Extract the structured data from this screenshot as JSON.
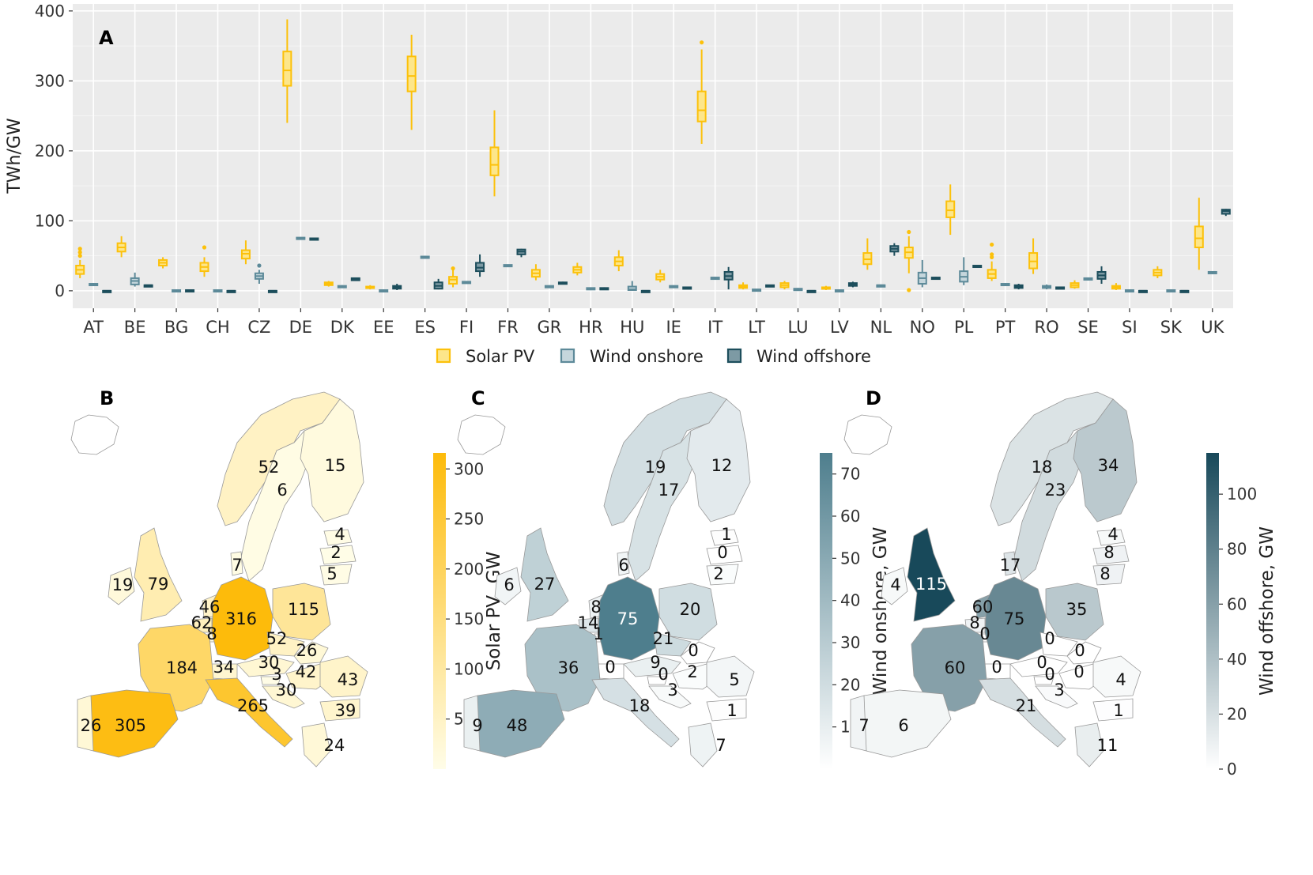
{
  "panel_labels": {
    "a": "A",
    "b": "B",
    "c": "C",
    "d": "D"
  },
  "colors": {
    "solar": "#fcc10b",
    "solar_fill": "#fde68a",
    "onshore": "#5d8a99",
    "onshore_fill": "#c5d6dc",
    "offshore": "#1d4e5c",
    "offshore_fill": "#7d9aa4",
    "plot_bg": "#ebebeb",
    "grid": "#ffffff"
  },
  "chart_data": [
    {
      "type": "box",
      "panel": "A",
      "ylabel": "TWh/GW",
      "ylim": [
        -25,
        410
      ],
      "yticks": [
        0,
        100,
        200,
        300,
        400
      ],
      "grid": true,
      "legend_position": "bottom",
      "categories": [
        "AT",
        "BE",
        "BG",
        "CH",
        "CZ",
        "DE",
        "DK",
        "EE",
        "ES",
        "FI",
        "FR",
        "GR",
        "HR",
        "HU",
        "IE",
        "IT",
        "LT",
        "LU",
        "LV",
        "NL",
        "NO",
        "PL",
        "PT",
        "RO",
        "SE",
        "SI",
        "SK",
        "UK"
      ],
      "series": [
        {
          "name": "Solar PV",
          "boxes": [
            {
              "min": 18,
              "q1": 24,
              "med": 30,
              "q3": 36,
              "max": 44,
              "outliers": [
                50,
                55,
                60
              ]
            },
            {
              "min": 48,
              "q1": 56,
              "med": 62,
              "q3": 68,
              "max": 78,
              "outliers": []
            },
            {
              "min": 32,
              "q1": 36,
              "med": 40,
              "q3": 44,
              "max": 48,
              "outliers": []
            },
            {
              "min": 20,
              "q1": 28,
              "med": 34,
              "q3": 40,
              "max": 48,
              "outliers": [
                62
              ]
            },
            {
              "min": 38,
              "q1": 46,
              "med": 53,
              "q3": 58,
              "max": 72,
              "outliers": []
            },
            {
              "min": 240,
              "q1": 293,
              "med": 315,
              "q3": 342,
              "max": 388,
              "outliers": []
            },
            {
              "min": 6,
              "q1": 8,
              "med": 10,
              "q3": 12,
              "max": 14,
              "outliers": []
            },
            {
              "min": 2,
              "q1": 4,
              "med": 5,
              "q3": 6,
              "max": 8,
              "outliers": []
            },
            {
              "min": 230,
              "q1": 285,
              "med": 307,
              "q3": 335,
              "max": 366,
              "outliers": []
            },
            {
              "min": 5,
              "q1": 10,
              "med": 16,
              "q3": 20,
              "max": 30,
              "outliers": [
                32
              ]
            },
            {
              "min": 135,
              "q1": 165,
              "med": 180,
              "q3": 205,
              "max": 258,
              "outliers": []
            },
            {
              "min": 15,
              "q1": 20,
              "med": 25,
              "q3": 30,
              "max": 38,
              "outliers": []
            },
            {
              "min": 22,
              "q1": 26,
              "med": 30,
              "q3": 34,
              "max": 40,
              "outliers": []
            },
            {
              "min": 28,
              "q1": 36,
              "med": 42,
              "q3": 48,
              "max": 58,
              "outliers": []
            },
            {
              "min": 12,
              "q1": 16,
              "med": 20,
              "q3": 24,
              "max": 30,
              "outliers": []
            },
            {
              "min": 210,
              "q1": 242,
              "med": 258,
              "q3": 285,
              "max": 345,
              "outliers": [
                355
              ]
            },
            {
              "min": 2,
              "q1": 4,
              "med": 6,
              "q3": 8,
              "max": 12,
              "outliers": []
            },
            {
              "min": 2,
              "q1": 5,
              "med": 8,
              "q3": 11,
              "max": 14,
              "outliers": []
            },
            {
              "min": 1,
              "q1": 3,
              "med": 4,
              "q3": 5,
              "max": 7,
              "outliers": []
            },
            {
              "min": 30,
              "q1": 38,
              "med": 45,
              "q3": 54,
              "max": 75,
              "outliers": []
            },
            {
              "min": 25,
              "q1": 47,
              "med": 55,
              "q3": 62,
              "max": 78,
              "outliers": [
                84,
                1
              ]
            },
            {
              "min": 80,
              "q1": 105,
              "med": 115,
              "q3": 128,
              "max": 152,
              "outliers": []
            },
            {
              "min": 14,
              "q1": 18,
              "med": 24,
              "q3": 30,
              "max": 42,
              "outliers": [
                48,
                52,
                66
              ]
            },
            {
              "min": 24,
              "q1": 32,
              "med": 42,
              "q3": 54,
              "max": 75,
              "outliers": []
            },
            {
              "min": 3,
              "q1": 5,
              "med": 8,
              "q3": 11,
              "max": 15,
              "outliers": []
            },
            {
              "min": 1,
              "q1": 3,
              "med": 5,
              "q3": 7,
              "max": 11,
              "outliers": []
            },
            {
              "min": 18,
              "q1": 22,
              "med": 26,
              "q3": 30,
              "max": 35,
              "outliers": []
            },
            {
              "min": 30,
              "q1": 62,
              "med": 75,
              "q3": 92,
              "max": 133,
              "outliers": []
            }
          ]
        },
        {
          "name": "Wind onshore",
          "boxes": [
            {
              "min": 7,
              "q1": 8,
              "med": 9,
              "q3": 10,
              "max": 11,
              "outliers": []
            },
            {
              "min": 6,
              "q1": 9,
              "med": 14,
              "q3": 18,
              "max": 26,
              "outliers": []
            },
            {
              "min": 0,
              "q1": 0,
              "med": 1,
              "q3": 1,
              "max": 2,
              "outliers": []
            },
            {
              "min": 0,
              "q1": 0,
              "med": 0,
              "q3": 1,
              "max": 1,
              "outliers": []
            },
            {
              "min": 10,
              "q1": 17,
              "med": 21,
              "q3": 25,
              "max": 30,
              "outliers": [
                36
              ]
            },
            {
              "min": 74,
              "q1": 74,
              "med": 75,
              "q3": 76,
              "max": 76,
              "outliers": []
            },
            {
              "min": 4,
              "q1": 5,
              "med": 6,
              "q3": 7,
              "max": 8,
              "outliers": []
            },
            {
              "min": 0,
              "q1": 0,
              "med": 1,
              "q3": 1,
              "max": 2,
              "outliers": []
            },
            {
              "min": 47,
              "q1": 48,
              "med": 48,
              "q3": 49,
              "max": 49,
              "outliers": []
            },
            {
              "min": 11,
              "q1": 12,
              "med": 12,
              "q3": 13,
              "max": 13,
              "outliers": []
            },
            {
              "min": 34,
              "q1": 35,
              "med": 36,
              "q3": 37,
              "max": 37,
              "outliers": []
            },
            {
              "min": 5,
              "q1": 6,
              "med": 6,
              "q3": 7,
              "max": 7,
              "outliers": []
            },
            {
              "min": 2,
              "q1": 3,
              "med": 3,
              "q3": 4,
              "max": 4,
              "outliers": []
            },
            {
              "min": 0,
              "q1": 1,
              "med": 2,
              "q3": 6,
              "max": 14,
              "outliers": []
            },
            {
              "min": 5,
              "q1": 6,
              "med": 6,
              "q3": 7,
              "max": 7,
              "outliers": []
            },
            {
              "min": 17,
              "q1": 17,
              "med": 18,
              "q3": 19,
              "max": 19,
              "outliers": []
            },
            {
              "min": 0,
              "q1": 1,
              "med": 1,
              "q3": 2,
              "max": 2,
              "outliers": []
            },
            {
              "min": 0,
              "q1": 1,
              "med": 2,
              "q3": 3,
              "max": 4,
              "outliers": []
            },
            {
              "min": 0,
              "q1": 0,
              "med": 1,
              "q3": 1,
              "max": 2,
              "outliers": []
            },
            {
              "min": 7,
              "q1": 7,
              "med": 8,
              "q3": 8,
              "max": 8,
              "outliers": []
            },
            {
              "min": 5,
              "q1": 10,
              "med": 18,
              "q3": 26,
              "max": 44,
              "outliers": []
            },
            {
              "min": 8,
              "q1": 13,
              "med": 20,
              "q3": 28,
              "max": 48,
              "outliers": []
            },
            {
              "min": 8,
              "q1": 9,
              "med": 9,
              "q3": 10,
              "max": 10,
              "outliers": []
            },
            {
              "min": 2,
              "q1": 4,
              "med": 5,
              "q3": 7,
              "max": 9,
              "outliers": []
            },
            {
              "min": 15,
              "q1": 16,
              "med": 17,
              "q3": 18,
              "max": 18,
              "outliers": []
            },
            {
              "min": 0,
              "q1": 0,
              "med": 0,
              "q3": 1,
              "max": 1,
              "outliers": []
            },
            {
              "min": 0,
              "q1": 0,
              "med": 1,
              "q3": 1,
              "max": 1,
              "outliers": []
            },
            {
              "min": 25,
              "q1": 26,
              "med": 27,
              "q3": 27,
              "max": 28,
              "outliers": []
            }
          ]
        },
        {
          "name": "Wind offshore",
          "boxes": [
            {
              "min": 0,
              "q1": 0,
              "med": 0,
              "q3": 0,
              "max": 0,
              "outliers": []
            },
            {
              "min": 7,
              "q1": 7,
              "med": 8,
              "q3": 8,
              "max": 8,
              "outliers": []
            },
            {
              "min": 0,
              "q1": 0,
              "med": 0,
              "q3": 1,
              "max": 1,
              "outliers": []
            },
            {
              "min": 0,
              "q1": 0,
              "med": 0,
              "q3": 0,
              "max": 0,
              "outliers": []
            },
            {
              "min": 0,
              "q1": 0,
              "med": 0,
              "q3": 0,
              "max": 0,
              "outliers": []
            },
            {
              "min": 74,
              "q1": 74,
              "med": 75,
              "q3": 75,
              "max": 76,
              "outliers": []
            },
            {
              "min": 14,
              "q1": 15,
              "med": 17,
              "q3": 18,
              "max": 19,
              "outliers": []
            },
            {
              "min": 1,
              "q1": 3,
              "med": 5,
              "q3": 7,
              "max": 10,
              "outliers": []
            },
            {
              "min": 2,
              "q1": 3,
              "med": 7,
              "q3": 12,
              "max": 17,
              "outliers": []
            },
            {
              "min": 20,
              "q1": 28,
              "med": 33,
              "q3": 40,
              "max": 52,
              "outliers": []
            },
            {
              "min": 48,
              "q1": 52,
              "med": 56,
              "q3": 59,
              "max": 60,
              "outliers": []
            },
            {
              "min": 9,
              "q1": 10,
              "med": 11,
              "q3": 12,
              "max": 13,
              "outliers": []
            },
            {
              "min": 1,
              "q1": 2,
              "med": 3,
              "q3": 4,
              "max": 5,
              "outliers": []
            },
            {
              "min": 0,
              "q1": 0,
              "med": 0,
              "q3": 0,
              "max": 0,
              "outliers": []
            },
            {
              "min": 3,
              "q1": 4,
              "med": 4,
              "q3": 5,
              "max": 6,
              "outliers": []
            },
            {
              "min": 2,
              "q1": 16,
              "med": 21,
              "q3": 27,
              "max": 34,
              "outliers": []
            },
            {
              "min": 6,
              "q1": 7,
              "med": 7,
              "q3": 8,
              "max": 8,
              "outliers": []
            },
            {
              "min": 0,
              "q1": 0,
              "med": 0,
              "q3": 0,
              "max": 0,
              "outliers": []
            },
            {
              "min": 5,
              "q1": 7,
              "med": 9,
              "q3": 11,
              "max": 13,
              "outliers": []
            },
            {
              "min": 50,
              "q1": 56,
              "med": 60,
              "q3": 64,
              "max": 68,
              "outliers": []
            },
            {
              "min": 16,
              "q1": 17,
              "med": 18,
              "q3": 19,
              "max": 20,
              "outliers": []
            },
            {
              "min": 34,
              "q1": 34,
              "med": 35,
              "q3": 36,
              "max": 36,
              "outliers": []
            },
            {
              "min": 2,
              "q1": 4,
              "med": 6,
              "q3": 8,
              "max": 10,
              "outliers": []
            },
            {
              "min": 3,
              "q1": 4,
              "med": 4,
              "q3": 5,
              "max": 5,
              "outliers": []
            },
            {
              "min": 10,
              "q1": 17,
              "med": 22,
              "q3": 27,
              "max": 35,
              "outliers": []
            },
            {
              "min": 0,
              "q1": 0,
              "med": 0,
              "q3": 0,
              "max": 0,
              "outliers": []
            },
            {
              "min": 0,
              "q1": 0,
              "med": 0,
              "q3": 0,
              "max": 0,
              "outliers": []
            },
            {
              "min": 107,
              "q1": 110,
              "med": 114,
              "q3": 116,
              "max": 117,
              "outliers": []
            }
          ]
        }
      ]
    },
    {
      "type": "map",
      "panel": "B",
      "colorbar_label": "Solar PV, GW",
      "colorbar_ticks": [
        50,
        100,
        150,
        200,
        250,
        300
      ],
      "colorbar_range": [
        0,
        316
      ],
      "color_low": "#fffde8",
      "color_high": "#fdbb0b",
      "values": {
        "NO": 52,
        "SE": 6,
        "FI": 15,
        "EE": 4,
        "LV": 2,
        "LT": 5,
        "DK": 7,
        "IE": 19,
        "UK": 79,
        "NL": 46,
        "BE": 62,
        "LU": 8,
        "DE": 316,
        "PL": 115,
        "CZ": 52,
        "SK": 26,
        "AT": 30,
        "HU": 42,
        "SI": 3,
        "HR": 30,
        "RO": 43,
        "BG": 39,
        "GR": 24,
        "CH": 34,
        "FR": 184,
        "IT": 265,
        "ES": 305,
        "PT": 26
      }
    },
    {
      "type": "map",
      "panel": "C",
      "colorbar_label": "Wind onshore, GW",
      "colorbar_ticks": [
        10,
        20,
        30,
        40,
        50,
        60,
        70
      ],
      "colorbar_range": [
        0,
        75
      ],
      "color_low": "#ffffff",
      "color_high": "#4e7e8d",
      "values": {
        "NO": 19,
        "SE": 17,
        "FI": 12,
        "EE": 1,
        "LV": 0,
        "LT": 2,
        "DK": 6,
        "IE": 6,
        "UK": 27,
        "NL": 8,
        "BE": 14,
        "LU": 1,
        "DE": 75,
        "PL": 20,
        "CZ": 21,
        "SK": 0,
        "AT": 9,
        "HU": 2,
        "SI": 0,
        "HR": 3,
        "RO": 5,
        "BG": 1,
        "GR": 7,
        "CH": 0,
        "FR": 36,
        "IT": 18,
        "ES": 48,
        "PT": 9
      }
    },
    {
      "type": "map",
      "panel": "D",
      "colorbar_label": "Wind offshore, GW",
      "colorbar_ticks": [
        0,
        20,
        40,
        60,
        80,
        100
      ],
      "colorbar_range": [
        0,
        115
      ],
      "color_low": "#ffffff",
      "color_high": "#18495a",
      "values": {
        "NO": 18,
        "SE": 23,
        "FI": 34,
        "EE": 4,
        "LV": 8,
        "LT": 8,
        "DK": 17,
        "IE": 4,
        "UK": 115,
        "NL": 60,
        "BE": 8,
        "LU": 0,
        "DE": 75,
        "PL": 35,
        "CZ": 0,
        "SK": 0,
        "AT": 0,
        "HU": 0,
        "SI": 0,
        "HR": 3,
        "RO": 4,
        "BG": 1,
        "GR": 11,
        "CH": 0,
        "FR": 60,
        "IT": 21,
        "ES": 6,
        "PT": 7
      }
    }
  ]
}
